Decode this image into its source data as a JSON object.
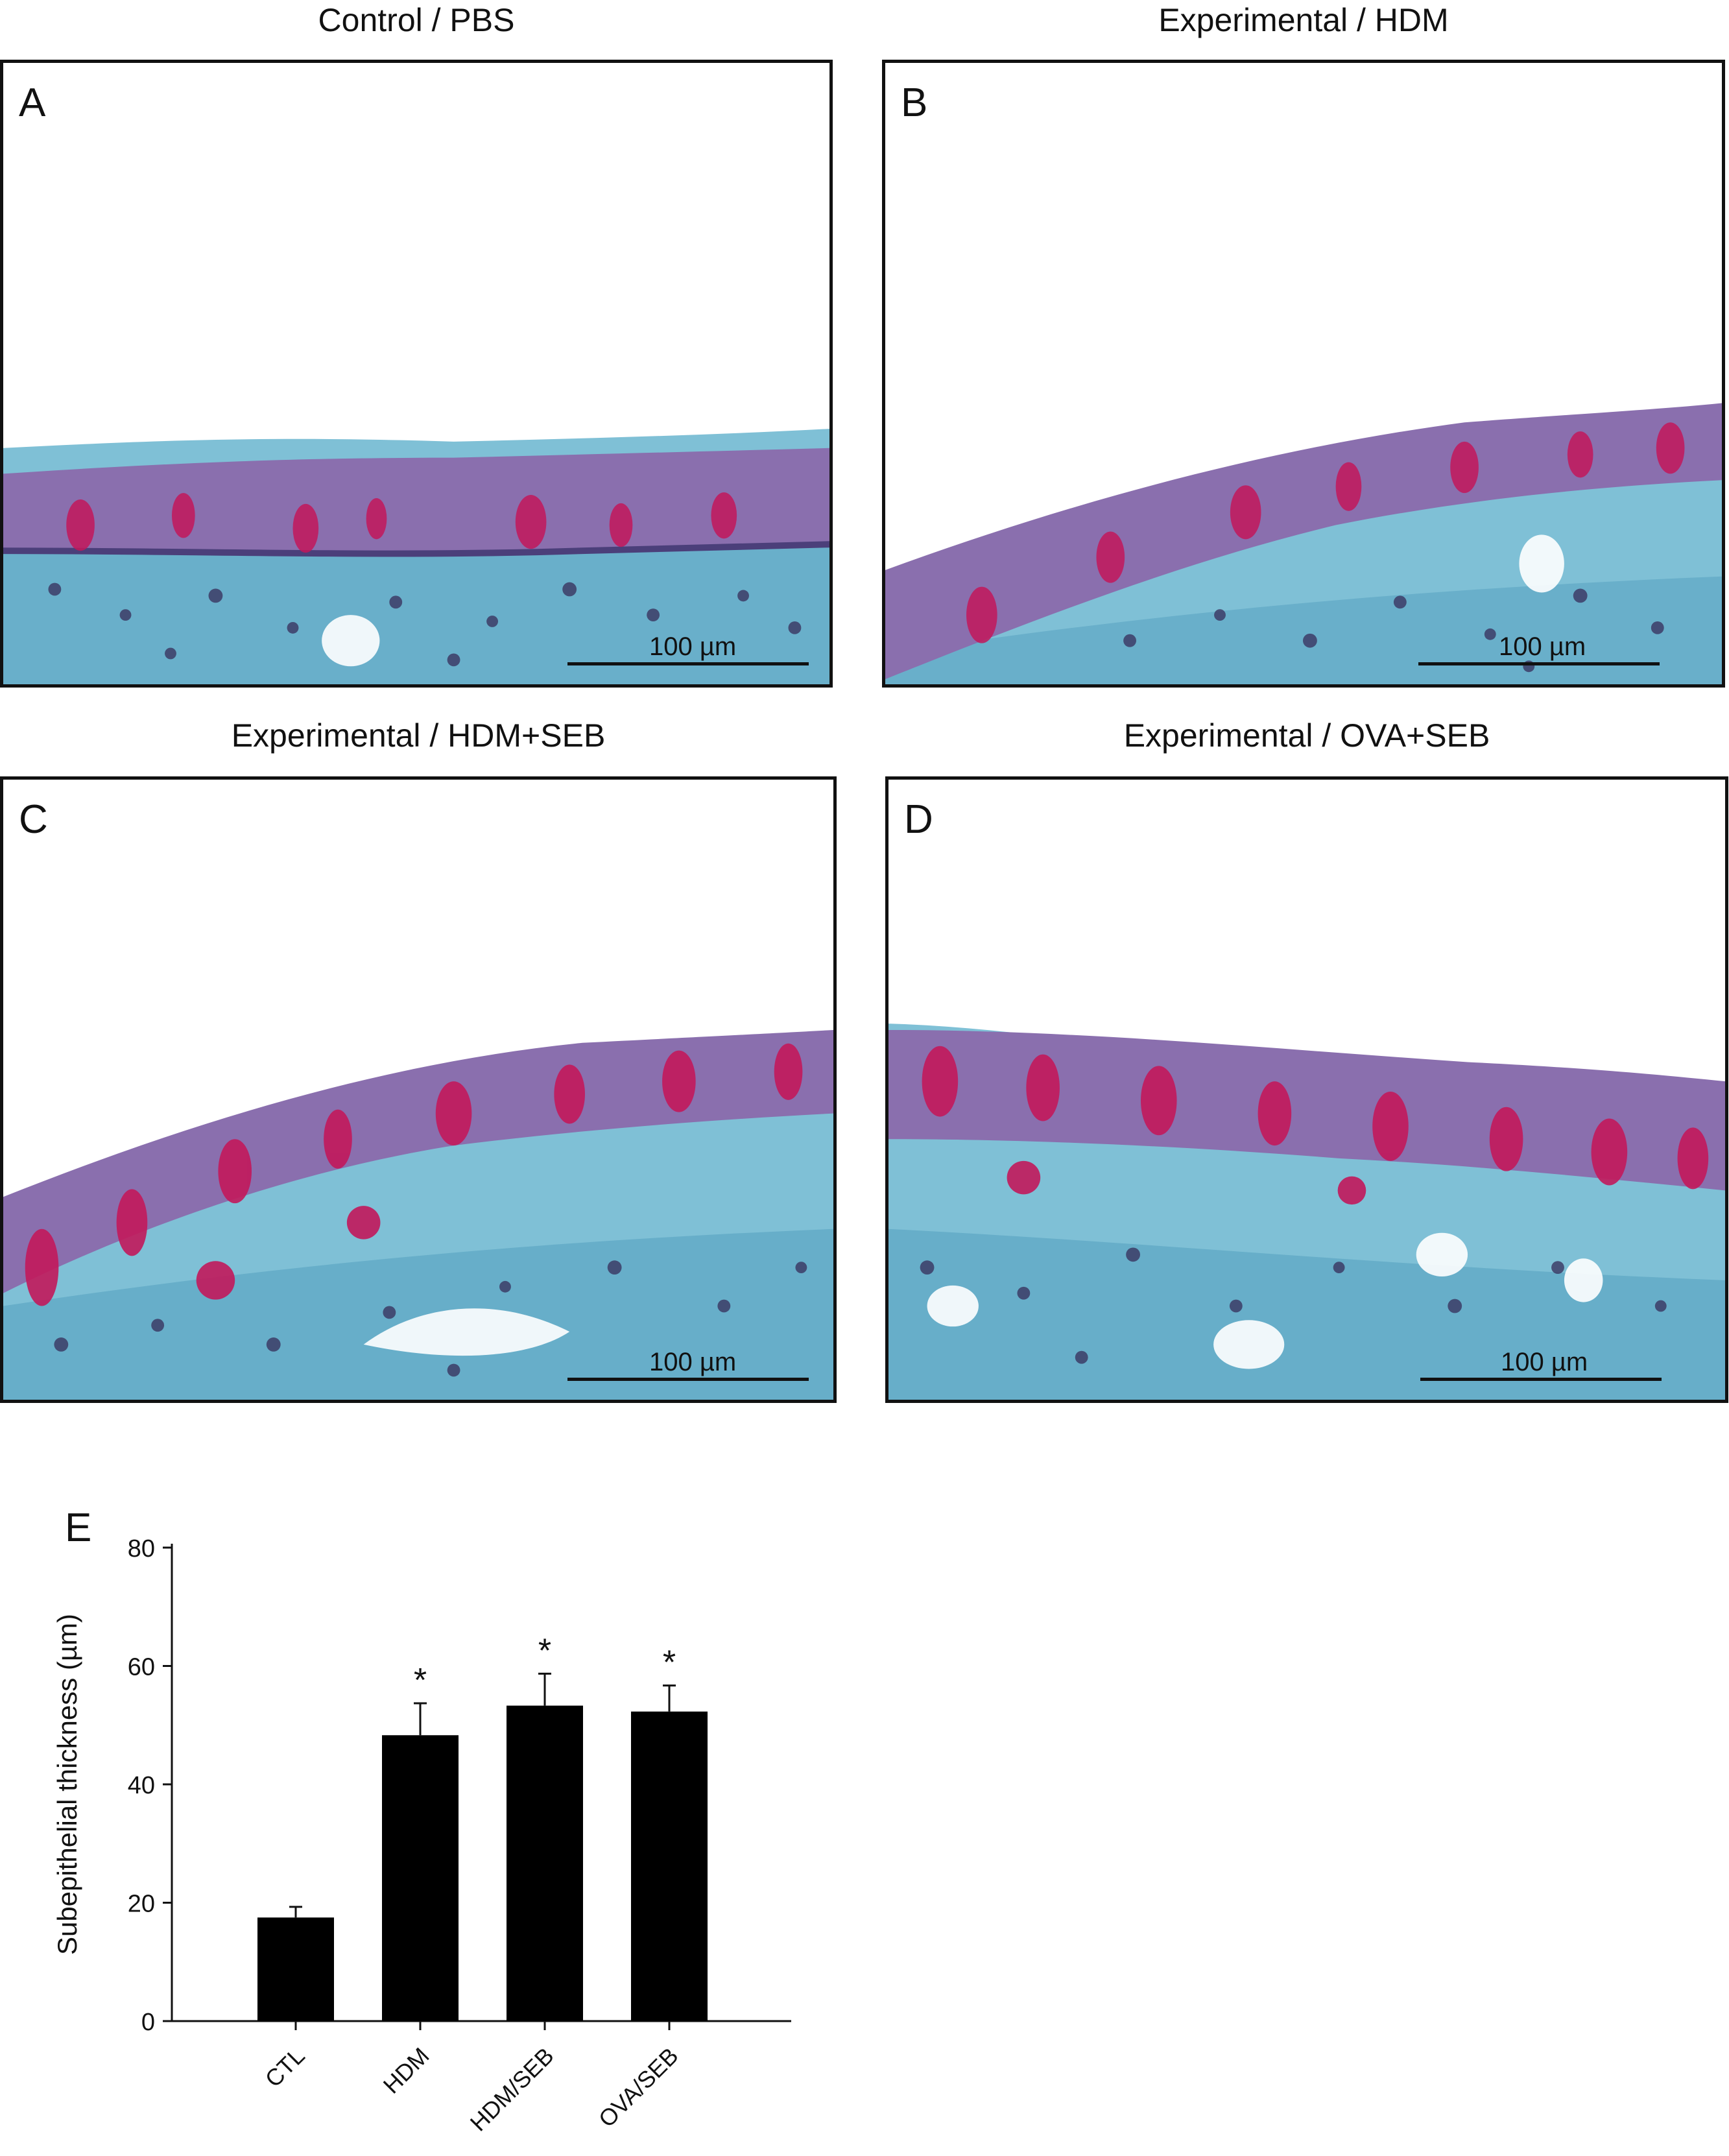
{
  "panels": [
    {
      "letter": "A",
      "title": "Control / PBS",
      "scale_label": "100 µm"
    },
    {
      "letter": "B",
      "title": "Experimental / HDM",
      "scale_label": "100 µm"
    },
    {
      "letter": "C",
      "title": "Experimental / HDM+SEB",
      "scale_label": "100 µm"
    },
    {
      "letter": "D",
      "title": "Experimental / OVA+SEB",
      "scale_label": "100 µm"
    }
  ],
  "colors": {
    "epithelium": "#8a6fae",
    "goblet": "#c2185b",
    "stroma": "#5fb6cf",
    "nuclei": "#3a3560",
    "bar": "#000000"
  },
  "chart_data": {
    "type": "bar",
    "panel_letter": "E",
    "categories": [
      "CTL",
      "HDM",
      "HDM/SEB",
      "OVA/SEB"
    ],
    "values": [
      17.5,
      48.3,
      53.3,
      52.3
    ],
    "errors": [
      1.8,
      5.4,
      5.4,
      4.4
    ],
    "significance": [
      "",
      "*",
      "*",
      "*"
    ],
    "ylabel": "Subepithelial thickness (µm)",
    "ylim": [
      0,
      80
    ],
    "yticks": [
      0,
      20,
      40,
      60,
      80
    ],
    "grid": false
  }
}
